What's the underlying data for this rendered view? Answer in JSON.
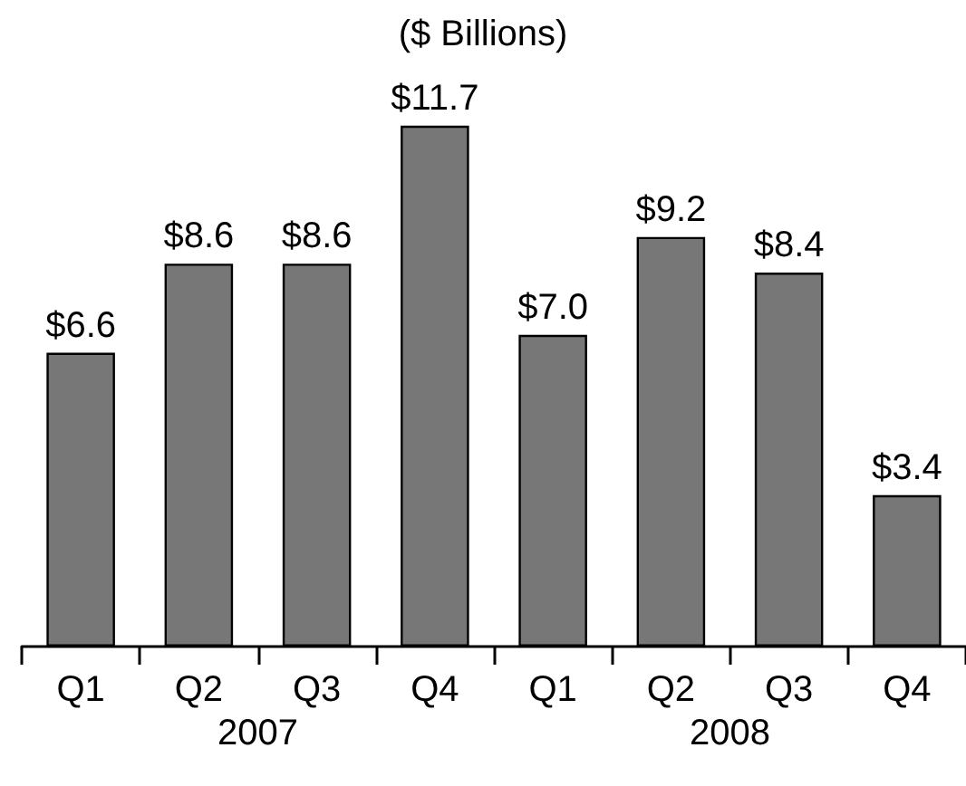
{
  "chart_data": {
    "type": "bar",
    "title": "($ Billions)",
    "categories": [
      "Q1",
      "Q2",
      "Q3",
      "Q4",
      "Q1",
      "Q2",
      "Q3",
      "Q4"
    ],
    "values": [
      6.6,
      8.6,
      8.6,
      11.7,
      7.0,
      9.2,
      8.4,
      3.4
    ],
    "value_labels": [
      "$6.6",
      "$8.6",
      "$8.6",
      "$11.7",
      "$7.0",
      "$9.2",
      "$8.4",
      "$3.4"
    ],
    "color": "#777777",
    "annotations": [
      "2007",
      "2008"
    ]
  }
}
